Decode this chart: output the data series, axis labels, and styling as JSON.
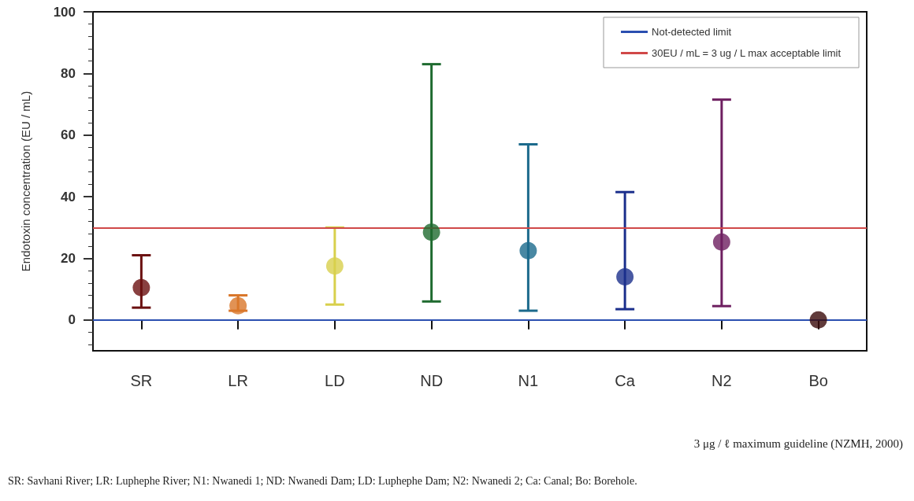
{
  "chart_data": {
    "type": "scatter",
    "ylabel": "Endotoxin concentration (EU / mL)",
    "categories": [
      "SR",
      "LR",
      "LD",
      "ND",
      "N1",
      "Ca",
      "N2",
      "Bo"
    ],
    "values": [
      10.5,
      4.6,
      17.5,
      28.5,
      22.5,
      14,
      25.3,
      0
    ],
    "colors": [
      "#6b1010",
      "#d9772b",
      "#d8d04c",
      "#1f6b30",
      "#1c6a8c",
      "#1b2f8c",
      "#6e1f60",
      "#3a0a0a"
    ],
    "errors": [
      [
        4,
        21
      ],
      [
        3,
        8
      ],
      [
        5,
        30
      ],
      [
        6,
        83
      ],
      [
        3,
        57
      ],
      [
        3.5,
        41.5
      ],
      [
        4.5,
        71.5
      ],
      null
    ],
    "ylim": [
      -10,
      100
    ],
    "yticks": [
      0,
      20,
      40,
      60,
      80,
      100
    ],
    "ref_lines": [
      {
        "axis": "y",
        "value": 0,
        "label": "Not-detected limit",
        "color": "#2a4fb0"
      },
      {
        "axis": "y",
        "value": 30,
        "label": "30EU / mL = 3 ug / L max acceptable limit",
        "color": "#d04848"
      }
    ],
    "legend": "top right",
    "grid": false,
    "marker": "circle",
    "annotations": [
      "3 μg / ℓ maximum guideline (NZMH, 2000)",
      "SR: Savhani River; LR: Luphephe River; N1: Nwanedi 1; ND: Nwanedi Dam; LD: Luphephe Dam; N2: Nwanedi 2; Ca: Canal; Bo: Borehole."
    ]
  }
}
